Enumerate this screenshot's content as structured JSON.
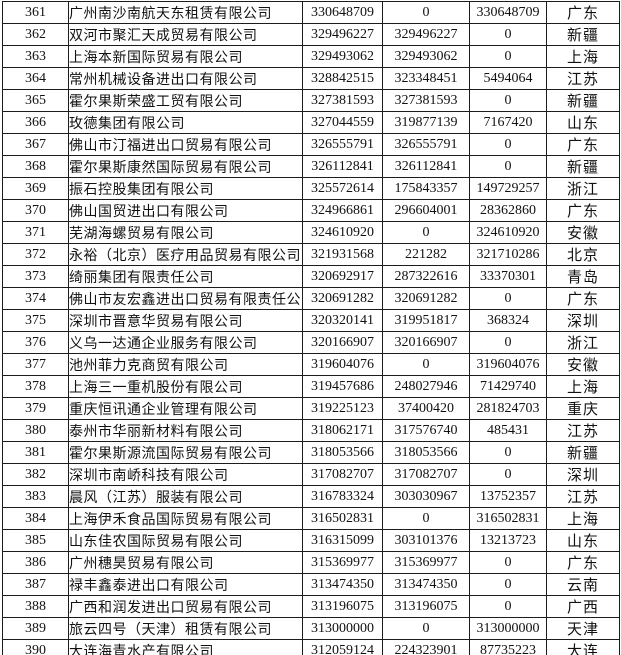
{
  "table": {
    "rows": [
      [
        "361",
        "广州南沙南航天东租赁有限公司",
        "330648709",
        "0",
        "330648709",
        "广东"
      ],
      [
        "362",
        "双河市聚汇天成贸易有限公司",
        "329496227",
        "329496227",
        "0",
        "新疆"
      ],
      [
        "363",
        "上海本新国际贸易有限公司",
        "329493062",
        "329493062",
        "0",
        "上海"
      ],
      [
        "364",
        "常州机械设备进出口有限公司",
        "328842515",
        "323348451",
        "5494064",
        "江苏"
      ],
      [
        "365",
        "霍尔果斯荣盛工贸有限公司",
        "327381593",
        "327381593",
        "0",
        "新疆"
      ],
      [
        "366",
        "玫德集团有限公司",
        "327044559",
        "319877139",
        "7167420",
        "山东"
      ],
      [
        "367",
        "佛山市汀福进出口贸易有限公司",
        "326555791",
        "326555791",
        "0",
        "广东"
      ],
      [
        "368",
        "霍尔果斯康然国际贸易有限公司",
        "326112841",
        "326112841",
        "0",
        "新疆"
      ],
      [
        "369",
        "振石控股集团有限公司",
        "325572614",
        "175843357",
        "149729257",
        "浙江"
      ],
      [
        "370",
        "佛山国贸进出口有限公司",
        "324966861",
        "296604001",
        "28362860",
        "广东"
      ],
      [
        "371",
        "芜湖海螺贸易有限公司",
        "324610920",
        "0",
        "324610920",
        "安徽"
      ],
      [
        "372",
        "永裕（北京）医疗用品贸易有限公司",
        "321931568",
        "221282",
        "321710286",
        "北京"
      ],
      [
        "373",
        "绮丽集团有限责任公司",
        "320692917",
        "287322616",
        "33370301",
        "青岛"
      ],
      [
        "374",
        "佛山市友宏鑫进出口贸易有限责任公司",
        "320691282",
        "320691282",
        "0",
        "广东"
      ],
      [
        "375",
        "深圳市晋意华贸易有限公司",
        "320320141",
        "319951817",
        "368324",
        "深圳"
      ],
      [
        "376",
        "义乌一达通企业服务有限公司",
        "320166907",
        "320166907",
        "0",
        "浙江"
      ],
      [
        "377",
        "池州菲力克商贸有限公司",
        "319604076",
        "0",
        "319604076",
        "安徽"
      ],
      [
        "378",
        "上海三一重机股份有限公司",
        "319457686",
        "248027946",
        "71429740",
        "上海"
      ],
      [
        "379",
        "重庆恒讯通企业管理有限公司",
        "319225123",
        "37400420",
        "281824703",
        "重庆"
      ],
      [
        "380",
        "泰州市华丽新材料有限公司",
        "318062171",
        "317576740",
        "485431",
        "江苏"
      ],
      [
        "381",
        "霍尔果斯源流国际贸易有限公司",
        "318053566",
        "318053566",
        "0",
        "新疆"
      ],
      [
        "382",
        "深圳市南峤科技有限公司",
        "317082707",
        "317082707",
        "0",
        "深圳"
      ],
      [
        "383",
        "晨风（江苏）服装有限公司",
        "316783324",
        "303030967",
        "13752357",
        "江苏"
      ],
      [
        "384",
        "上海伊禾食品国际贸易有限公司",
        "316502831",
        "0",
        "316502831",
        "上海"
      ],
      [
        "385",
        "山东佳农国际贸易有限公司",
        "316315099",
        "303101376",
        "13213723",
        "山东"
      ],
      [
        "386",
        "广州穗昊贸易有限公司",
        "315369977",
        "315369977",
        "0",
        "广东"
      ],
      [
        "387",
        "禄丰鑫泰进出口有限公司",
        "313474350",
        "313474350",
        "0",
        "云南"
      ],
      [
        "388",
        "广西和润发进出口贸易有限公司",
        "313196075",
        "313196075",
        "0",
        "广西"
      ],
      [
        "389",
        "旅云四号（天津）租赁有限公司",
        "313000000",
        "0",
        "313000000",
        "天津"
      ],
      [
        "390",
        "大连海青水产有限公司",
        "312059124",
        "224323901",
        "87735223",
        "大连"
      ]
    ]
  }
}
